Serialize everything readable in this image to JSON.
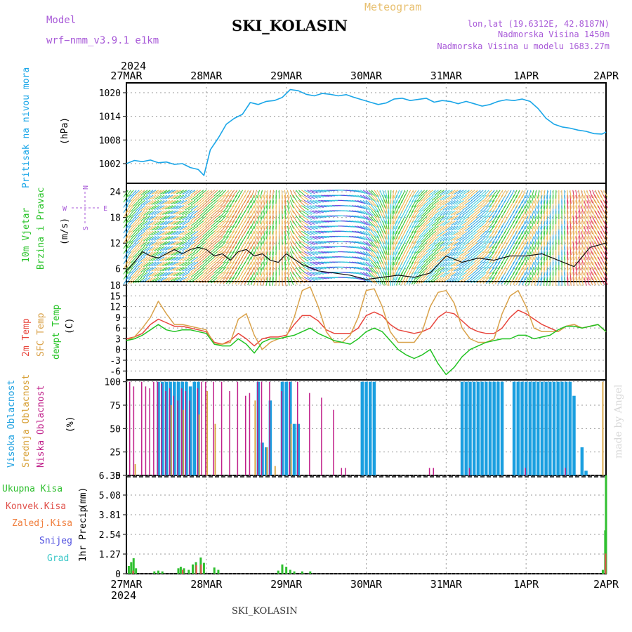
{
  "header": {
    "model_label": "Model",
    "model_name": "wrf−nmm_v3.9.1  e1km",
    "station": "SKI_KOLASIN",
    "meteogram": "Meteogram",
    "lonlat": "lon,lat (19.6312E, 42.8187N)",
    "elevation": "Nadmorska Visina 1450m",
    "model_elevation": "Nadmorska Visina u modelu 1683.27m",
    "year_top": "2024",
    "year_bottom": "2024",
    "footer_station": "SKI_KOLASIN",
    "credit": "made by Angel"
  },
  "colors": {
    "pressure": "#1aa6e8",
    "temp2m": "#e8453c",
    "sfc_temp": "#d9a24a",
    "dewpoint": "#22c322",
    "cloud_high": "#1a9fe0",
    "cloud_mid": "#d8a23a",
    "cloud_low": "#c0208a",
    "precip_total": "#2fbf2f",
    "precip_conv": "#e0504a",
    "model_label": "#a85ad8",
    "meteogram_label": "#e8c070"
  },
  "chart_data": [
    {
      "type": "line",
      "name": "pressure",
      "ylabel_main": "Pritisak na nivou mora",
      "ylabel_unit": "(hPa)",
      "x_tick_labels": [
        "27MAR",
        "28MAR",
        "29MAR",
        "30MAR",
        "31MAR",
        "1APR",
        "2APR"
      ],
      "yticks": [
        1002,
        1008,
        1014,
        1020
      ],
      "ylim": [
        997,
        1022.5
      ],
      "x_days": [
        0,
        0.1,
        0.2,
        0.3,
        0.4,
        0.5,
        0.6,
        0.7,
        0.8,
        0.9,
        0.97,
        1.05,
        1.15,
        1.25,
        1.35,
        1.45,
        1.55,
        1.65,
        1.75,
        1.85,
        1.95,
        2.05,
        2.15,
        2.25,
        2.35,
        2.45,
        2.55,
        2.65,
        2.75,
        2.85,
        2.95,
        3.05,
        3.15,
        3.25,
        3.35,
        3.45,
        3.55,
        3.65,
        3.75,
        3.85,
        3.95,
        4.05,
        4.15,
        4.25,
        4.35,
        4.45,
        4.55,
        4.65,
        4.75,
        4.85,
        4.95,
        5.05,
        5.15,
        5.25,
        5.35,
        5.45,
        5.55,
        5.65,
        5.75,
        5.85,
        5.95,
        6.0
      ],
      "values": [
        1002,
        1002.8,
        1002.5,
        1002.9,
        1002.2,
        1002.4,
        1001.8,
        1002.0,
        1001.0,
        1000.5,
        999.0,
        1005.5,
        1008.5,
        1012.0,
        1013.5,
        1014.5,
        1017.5,
        1017.0,
        1017.8,
        1018.0,
        1018.8,
        1020.8,
        1020.5,
        1019.6,
        1019.2,
        1019.8,
        1019.6,
        1019.2,
        1019.5,
        1018.8,
        1018.2,
        1017.6,
        1017.0,
        1017.4,
        1018.4,
        1018.6,
        1018.0,
        1018.3,
        1018.6,
        1017.6,
        1018.0,
        1017.8,
        1017.2,
        1017.8,
        1017.2,
        1016.6,
        1017.0,
        1017.8,
        1018.2,
        1018.0,
        1018.4,
        1017.8,
        1016.0,
        1013.5,
        1012.0,
        1011.3,
        1011.0,
        1010.5,
        1010.2,
        1009.6,
        1009.5,
        1010.0
      ]
    },
    {
      "type": "line",
      "name": "wind",
      "ylabel_main": "10m Vjetar",
      "ylabel_sub": "Brzina i Pravac",
      "ylabel_unit": "(m/s)",
      "compass": {
        "n": "N",
        "s": "S",
        "w": "W",
        "e": "E"
      },
      "yticks": [
        6,
        12,
        18,
        24
      ],
      "ylim": [
        3,
        26
      ],
      "x_days": [
        0,
        0.1,
        0.2,
        0.3,
        0.4,
        0.5,
        0.6,
        0.7,
        0.8,
        0.9,
        1.0,
        1.1,
        1.2,
        1.3,
        1.4,
        1.5,
        1.6,
        1.7,
        1.8,
        1.9,
        2.0,
        2.2,
        2.4,
        2.6,
        2.8,
        3.0,
        3.2,
        3.4,
        3.6,
        3.8,
        4.0,
        4.2,
        4.4,
        4.6,
        4.8,
        5.0,
        5.2,
        5.4,
        5.6,
        5.8,
        6.0
      ],
      "speed": [
        5.5,
        7.5,
        10,
        9.0,
        8.5,
        9.5,
        10.5,
        9.5,
        10.5,
        11.0,
        10.5,
        9.0,
        9.5,
        8.0,
        10.0,
        10.5,
        9.0,
        9.5,
        8.0,
        7.5,
        9.5,
        7.0,
        5.5,
        5.0,
        4.5,
        3.5,
        4.0,
        4.5,
        4.0,
        5.0,
        9.0,
        7.5,
        8.5,
        8.0,
        9.0,
        9.0,
        9.5,
        8.0,
        6.5,
        11.0,
        12.0
      ],
      "direction_deg": [
        210,
        220,
        230,
        235,
        240,
        240,
        245,
        245,
        240,
        235,
        230,
        230,
        225,
        220,
        215,
        210,
        200,
        195,
        190,
        180,
        170,
        120,
        100,
        90,
        100,
        130,
        160,
        200,
        210,
        230,
        235,
        240,
        230,
        220,
        210,
        200,
        190,
        180,
        170,
        160,
        150
      ]
    },
    {
      "type": "line",
      "name": "temperature",
      "ylabel_t2m": "2m Temp",
      "ylabel_sfc": "SFC Temp",
      "ylabel_dew": "dewpt Temp",
      "ylabel_unit": "(C)",
      "yticks": [
        -6,
        -3,
        0,
        3,
        6,
        9,
        12,
        15,
        18
      ],
      "ylim": [
        -8.5,
        19
      ],
      "x_days": [
        0,
        0.1,
        0.2,
        0.3,
        0.4,
        0.5,
        0.6,
        0.7,
        0.8,
        0.9,
        1.0,
        1.1,
        1.2,
        1.3,
        1.4,
        1.5,
        1.6,
        1.7,
        1.8,
        1.9,
        2.0,
        2.1,
        2.2,
        2.3,
        2.4,
        2.5,
        2.6,
        2.7,
        2.8,
        2.9,
        3.0,
        3.1,
        3.2,
        3.3,
        3.4,
        3.5,
        3.6,
        3.7,
        3.8,
        3.9,
        4.0,
        4.1,
        4.2,
        4.3,
        4.4,
        4.5,
        4.6,
        4.7,
        4.8,
        4.9,
        5.0,
        5.1,
        5.2,
        5.3,
        5.4,
        5.5,
        5.6,
        5.7,
        5.8,
        5.9,
        6.0
      ],
      "series": [
        {
          "key": "t2m",
          "values": [
            3,
            3.5,
            4.5,
            7,
            8.5,
            7.5,
            6.5,
            6.5,
            6,
            5.5,
            5,
            2,
            1.5,
            2.5,
            4.5,
            3,
            1,
            3,
            3.5,
            3.5,
            4,
            7,
            9.5,
            9.5,
            8,
            5.5,
            4.5,
            4.5,
            4.5,
            6,
            9.5,
            10.5,
            9.5,
            7,
            5.5,
            5,
            4.5,
            5,
            6,
            9,
            10.5,
            10,
            8,
            6,
            5,
            4.5,
            4.5,
            6,
            9,
            11,
            10,
            8.5,
            7,
            6,
            5,
            6.5,
            7,
            6,
            6.5,
            7,
            5
          ]
        },
        {
          "key": "sfc",
          "values": [
            2.5,
            3.5,
            6,
            9,
            13.5,
            10,
            7,
            7,
            6.5,
            6,
            5.5,
            1.5,
            1.5,
            2,
            8.5,
            10,
            4,
            0,
            2,
            3,
            3.5,
            9,
            16.5,
            17.5,
            12,
            5,
            2,
            2,
            4,
            9,
            16.5,
            17,
            12,
            5,
            2,
            2,
            2,
            5,
            12,
            16,
            16.5,
            13,
            6,
            3,
            2,
            2,
            3,
            10,
            15,
            16.5,
            12,
            6,
            5,
            5,
            5,
            6.5,
            7,
            6,
            6.5,
            7,
            5
          ]
        },
        {
          "key": "dew",
          "values": [
            2.5,
            3,
            4,
            5.5,
            7,
            5.5,
            5,
            5.5,
            5.5,
            5,
            4.5,
            1.5,
            1,
            1,
            3,
            1.5,
            -1,
            2,
            3,
            3,
            3.5,
            4,
            5,
            6,
            4.5,
            3.5,
            2.5,
            2,
            1.5,
            3,
            5,
            6,
            5,
            2.5,
            0,
            -1.5,
            -2.5,
            -1.5,
            0,
            -4,
            -7,
            -5,
            -2,
            0,
            1,
            2,
            2.5,
            3,
            3,
            4,
            4,
            3,
            3.5,
            4,
            5.5,
            6.5,
            6.5,
            6,
            6.5,
            7,
            5
          ]
        }
      ]
    },
    {
      "type": "bar",
      "name": "clouds",
      "ylabel_high": "Visoka Oblacnost",
      "ylabel_mid": "Srednja Oblacnost",
      "ylabel_low": "Niska Oblacnost",
      "ylabel_unit": "(%)",
      "yticks": [
        0,
        25,
        50,
        75,
        100
      ],
      "ylim": [
        0,
        102
      ],
      "high": [
        {
          "x": 0.4,
          "v": 100
        },
        {
          "x": 0.45,
          "v": 100
        },
        {
          "x": 0.5,
          "v": 100
        },
        {
          "x": 0.55,
          "v": 100
        },
        {
          "x": 0.6,
          "v": 100
        },
        {
          "x": 0.65,
          "v": 100
        },
        {
          "x": 0.7,
          "v": 100
        },
        {
          "x": 0.75,
          "v": 100
        },
        {
          "x": 0.8,
          "v": 95
        },
        {
          "x": 0.85,
          "v": 100
        },
        {
          "x": 0.9,
          "v": 100
        },
        {
          "x": 1.65,
          "v": 100
        },
        {
          "x": 1.7,
          "v": 35
        },
        {
          "x": 1.75,
          "v": 30
        },
        {
          "x": 1.8,
          "v": 80
        },
        {
          "x": 1.95,
          "v": 100
        },
        {
          "x": 2.0,
          "v": 100
        },
        {
          "x": 2.05,
          "v": 100
        },
        {
          "x": 2.1,
          "v": 55
        },
        {
          "x": 2.15,
          "v": 55
        },
        {
          "x": 2.95,
          "v": 100
        },
        {
          "x": 3.0,
          "v": 100
        },
        {
          "x": 3.05,
          "v": 100
        },
        {
          "x": 3.1,
          "v": 100
        },
        {
          "x": 4.2,
          "v": 100
        },
        {
          "x": 4.25,
          "v": 100
        },
        {
          "x": 4.3,
          "v": 100
        },
        {
          "x": 4.35,
          "v": 100
        },
        {
          "x": 4.4,
          "v": 100
        },
        {
          "x": 4.45,
          "v": 100
        },
        {
          "x": 4.5,
          "v": 100
        },
        {
          "x": 4.55,
          "v": 100
        },
        {
          "x": 4.6,
          "v": 100
        },
        {
          "x": 4.65,
          "v": 100
        },
        {
          "x": 4.7,
          "v": 100
        },
        {
          "x": 4.85,
          "v": 100
        },
        {
          "x": 4.9,
          "v": 100
        },
        {
          "x": 4.95,
          "v": 100
        },
        {
          "x": 5.0,
          "v": 100
        },
        {
          "x": 5.05,
          "v": 100
        },
        {
          "x": 5.1,
          "v": 100
        },
        {
          "x": 5.15,
          "v": 100
        },
        {
          "x": 5.2,
          "v": 100
        },
        {
          "x": 5.25,
          "v": 100
        },
        {
          "x": 5.3,
          "v": 100
        },
        {
          "x": 5.35,
          "v": 100
        },
        {
          "x": 5.4,
          "v": 100
        },
        {
          "x": 5.45,
          "v": 100
        },
        {
          "x": 5.5,
          "v": 100
        },
        {
          "x": 5.55,
          "v": 100
        },
        {
          "x": 5.6,
          "v": 85
        },
        {
          "x": 5.7,
          "v": 30
        },
        {
          "x": 5.75,
          "v": 5
        }
      ],
      "mid": [
        {
          "x": 0.1,
          "v": 12
        },
        {
          "x": 0.55,
          "v": 75
        },
        {
          "x": 0.7,
          "v": 70
        },
        {
          "x": 0.9,
          "v": 65
        },
        {
          "x": 1.0,
          "v": 90
        },
        {
          "x": 1.1,
          "v": 55
        },
        {
          "x": 1.6,
          "v": 80
        },
        {
          "x": 1.75,
          "v": 30
        },
        {
          "x": 1.85,
          "v": 10
        },
        {
          "x": 2.05,
          "v": 55
        },
        {
          "x": 5.95,
          "v": 100
        }
      ],
      "low": [
        {
          "x": 0.05,
          "v": 100
        },
        {
          "x": 0.1,
          "v": 95
        },
        {
          "x": 0.2,
          "v": 100
        },
        {
          "x": 0.25,
          "v": 95
        },
        {
          "x": 0.3,
          "v": 93
        },
        {
          "x": 0.35,
          "v": 100
        },
        {
          "x": 0.4,
          "v": 100
        },
        {
          "x": 0.45,
          "v": 98
        },
        {
          "x": 0.5,
          "v": 90
        },
        {
          "x": 0.55,
          "v": 93
        },
        {
          "x": 0.6,
          "v": 85
        },
        {
          "x": 0.65,
          "v": 80
        },
        {
          "x": 0.7,
          "v": 93
        },
        {
          "x": 0.75,
          "v": 90
        },
        {
          "x": 0.8,
          "v": 80
        },
        {
          "x": 0.9,
          "v": 93
        },
        {
          "x": 0.95,
          "v": 100
        },
        {
          "x": 1.0,
          "v": 100
        },
        {
          "x": 1.1,
          "v": 100
        },
        {
          "x": 1.2,
          "v": 100
        },
        {
          "x": 1.3,
          "v": 90
        },
        {
          "x": 1.4,
          "v": 100
        },
        {
          "x": 1.5,
          "v": 85
        },
        {
          "x": 1.55,
          "v": 88
        },
        {
          "x": 1.65,
          "v": 100
        },
        {
          "x": 1.7,
          "v": 100
        },
        {
          "x": 1.8,
          "v": 100
        },
        {
          "x": 1.95,
          "v": 90
        },
        {
          "x": 2.05,
          "v": 100
        },
        {
          "x": 2.15,
          "v": 100
        },
        {
          "x": 2.3,
          "v": 88
        },
        {
          "x": 2.45,
          "v": 83
        },
        {
          "x": 2.6,
          "v": 70
        },
        {
          "x": 2.7,
          "v": 8
        },
        {
          "x": 2.75,
          "v": 8
        },
        {
          "x": 3.8,
          "v": 8
        },
        {
          "x": 3.85,
          "v": 8
        },
        {
          "x": 4.3,
          "v": 8
        },
        {
          "x": 5.0,
          "v": 8
        },
        {
          "x": 5.5,
          "v": 8
        }
      ]
    },
    {
      "type": "bar",
      "name": "precipitation",
      "legend": [
        "Ukupna  Kisa",
        "Konvek.Kisa",
        "Zaledj.Kisa",
        "Snijeg",
        "Grad"
      ],
      "ylabel_main": "1hr Precip",
      "ylabel_unit": "(mm)",
      "yticks": [
        0,
        1.27,
        2.54,
        3.81,
        5.08,
        6.35
      ],
      "ylim": [
        0,
        6.35
      ],
      "total": [
        {
          "x": 0.03,
          "v": 0.5
        },
        {
          "x": 0.06,
          "v": 0.75
        },
        {
          "x": 0.09,
          "v": 1.0
        },
        {
          "x": 0.12,
          "v": 0.35
        },
        {
          "x": 0.35,
          "v": 0.15
        },
        {
          "x": 0.4,
          "v": 0.2
        },
        {
          "x": 0.45,
          "v": 0.15
        },
        {
          "x": 0.65,
          "v": 0.35
        },
        {
          "x": 0.68,
          "v": 0.45
        },
        {
          "x": 0.72,
          "v": 0.35
        },
        {
          "x": 0.78,
          "v": 0.25
        },
        {
          "x": 0.83,
          "v": 0.6
        },
        {
          "x": 0.87,
          "v": 0.75
        },
        {
          "x": 0.93,
          "v": 1.05
        },
        {
          "x": 0.97,
          "v": 0.7
        },
        {
          "x": 1.1,
          "v": 0.4
        },
        {
          "x": 1.15,
          "v": 0.25
        },
        {
          "x": 1.9,
          "v": 0.2
        },
        {
          "x": 1.95,
          "v": 0.6
        },
        {
          "x": 2.0,
          "v": 0.45
        },
        {
          "x": 2.05,
          "v": 0.25
        },
        {
          "x": 2.1,
          "v": 0.15
        },
        {
          "x": 2.2,
          "v": 0.15
        },
        {
          "x": 2.3,
          "v": 0.15
        },
        {
          "x": 5.96,
          "v": 0.25
        },
        {
          "x": 5.99,
          "v": 2.8
        },
        {
          "x": 6.0,
          "v": 6.35
        }
      ],
      "convective": [
        {
          "x": 0.08,
          "v": 0.2
        },
        {
          "x": 0.7,
          "v": 0.25
        },
        {
          "x": 0.87,
          "v": 0.55
        },
        {
          "x": 0.93,
          "v": 0.6
        },
        {
          "x": 5.99,
          "v": 1.3
        }
      ]
    }
  ]
}
